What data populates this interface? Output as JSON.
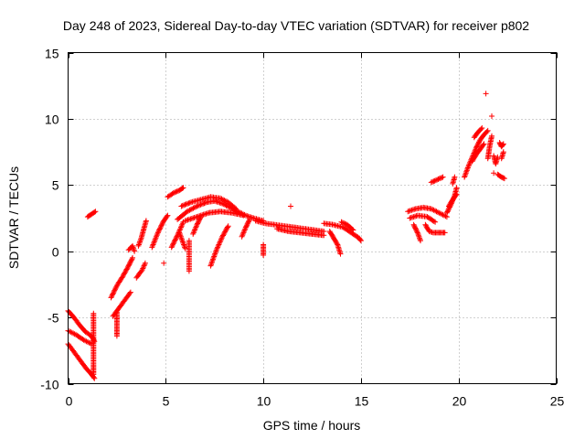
{
  "chart_data": {
    "type": "scatter",
    "title": "Day 248 of 2023, Sidereal Day-to-day VTEC variation (SDTVAR) for receiver p802",
    "xlabel": "GPS time / hours",
    "ylabel": "SDTVAR / TECUs",
    "xlim": [
      0,
      25
    ],
    "ylim": [
      -10,
      15
    ],
    "xticks": [
      0,
      5,
      10,
      15,
      20,
      25
    ],
    "yticks": [
      -10,
      -5,
      0,
      5,
      10,
      15
    ],
    "xtick_labels": [
      "0",
      "5",
      "10",
      "15",
      "20",
      "25"
    ],
    "ytick_labels": [
      "-10",
      "-5",
      "0",
      "5",
      "10",
      "15"
    ],
    "grid": true,
    "marker": "+",
    "series": [
      {
        "name": "SDTVAR",
        "color": "#ff0000",
        "segments": [
          [
            [
              0.0,
              -4.5
            ],
            [
              0.3,
              -5.0
            ],
            [
              0.6,
              -5.6
            ],
            [
              0.9,
              -6.1
            ],
            [
              1.2,
              -6.4
            ],
            [
              1.35,
              -6.8
            ]
          ],
          [
            [
              0.0,
              -6.0
            ],
            [
              0.4,
              -6.3
            ],
            [
              0.8,
              -6.7
            ],
            [
              1.2,
              -7.0
            ]
          ],
          [
            [
              0.0,
              -7.0
            ],
            [
              0.3,
              -7.6
            ],
            [
              0.6,
              -8.2
            ],
            [
              0.9,
              -8.8
            ],
            [
              1.2,
              -9.3
            ],
            [
              1.35,
              -9.6
            ]
          ],
          [
            [
              1.3,
              -4.7
            ],
            [
              1.3,
              -6.0
            ],
            [
              1.3,
              -7.2
            ],
            [
              1.3,
              -8.6
            ],
            [
              1.3,
              -9.3
            ]
          ],
          [
            [
              1.0,
              2.6
            ],
            [
              1.2,
              2.8
            ],
            [
              1.4,
              3.0
            ]
          ],
          [
            [
              2.2,
              -3.5
            ],
            [
              2.5,
              -2.6
            ],
            [
              2.8,
              -1.9
            ],
            [
              3.1,
              -1.1
            ],
            [
              3.3,
              -0.5
            ]
          ],
          [
            [
              2.3,
              -4.9
            ],
            [
              2.6,
              -4.3
            ],
            [
              2.9,
              -3.7
            ],
            [
              3.2,
              -3.1
            ]
          ],
          [
            [
              2.5,
              -4.6
            ],
            [
              2.5,
              -5.4
            ],
            [
              2.5,
              -6.4
            ]
          ],
          [
            [
              3.1,
              0.1
            ],
            [
              3.3,
              0.4
            ],
            [
              3.4,
              0.0
            ]
          ],
          [
            [
              3.5,
              -2.0
            ],
            [
              3.8,
              -1.4
            ],
            [
              3.95,
              -0.9
            ]
          ],
          [
            [
              3.6,
              0.4
            ],
            [
              3.75,
              1.0
            ],
            [
              3.9,
              1.8
            ],
            [
              4.0,
              2.3
            ]
          ],
          [
            [
              4.3,
              0.3
            ],
            [
              4.6,
              1.4
            ],
            [
              4.9,
              2.3
            ],
            [
              5.1,
              2.7
            ]
          ],
          [
            [
              4.9,
              -0.9
            ]
          ],
          [
            [
              5.1,
              4.1
            ],
            [
              5.4,
              4.4
            ],
            [
              5.7,
              4.6
            ],
            [
              5.9,
              4.8
            ]
          ],
          [
            [
              5.3,
              0.3
            ],
            [
              5.6,
              1.2
            ],
            [
              5.9,
              2.2
            ]
          ],
          [
            [
              5.6,
              2.4
            ],
            [
              6.1,
              3.0
            ],
            [
              6.6,
              3.4
            ],
            [
              7.1,
              3.7
            ],
            [
              7.5,
              3.8
            ],
            [
              7.9,
              3.6
            ],
            [
              8.3,
              3.3
            ],
            [
              8.7,
              3.0
            ],
            [
              9.1,
              2.7
            ],
            [
              9.5,
              2.5
            ],
            [
              10.0,
              2.3
            ]
          ],
          [
            [
              5.8,
              3.4
            ],
            [
              6.3,
              3.7
            ],
            [
              6.8,
              3.9
            ],
            [
              7.3,
              4.1
            ],
            [
              7.8,
              4.0
            ],
            [
              8.2,
              3.7
            ],
            [
              8.6,
              3.2
            ]
          ],
          [
            [
              6.0,
              2.3
            ],
            [
              6.6,
              2.6
            ],
            [
              7.2,
              2.9
            ],
            [
              7.8,
              3.0
            ],
            [
              8.4,
              2.9
            ],
            [
              9.0,
              2.7
            ]
          ],
          [
            [
              6.2,
              0.8
            ],
            [
              6.2,
              -0.4
            ],
            [
              6.2,
              -1.5
            ]
          ],
          [
            [
              6.4,
              1.3
            ],
            [
              6.6,
              2.0
            ],
            [
              6.8,
              2.6
            ]
          ],
          [
            [
              6.0,
              0.2
            ],
            [
              5.7,
              1.4
            ]
          ],
          [
            [
              7.3,
              -1.1
            ],
            [
              7.6,
              0.1
            ],
            [
              7.9,
              1.1
            ],
            [
              8.2,
              1.9
            ]
          ],
          [
            [
              8.9,
              1.1
            ],
            [
              9.1,
              1.8
            ],
            [
              9.3,
              2.4
            ]
          ],
          [
            [
              9.6,
              2.3
            ],
            [
              10.1,
              2.1
            ],
            [
              10.6,
              2.0
            ],
            [
              11.1,
              1.9
            ],
            [
              11.6,
              1.8
            ],
            [
              12.1,
              1.7
            ],
            [
              12.6,
              1.6
            ],
            [
              13.1,
              1.5
            ]
          ],
          [
            [
              10.0,
              0.5
            ],
            [
              10.0,
              -0.3
            ]
          ],
          [
            [
              10.7,
              1.7
            ],
            [
              11.3,
              1.5
            ],
            [
              11.9,
              1.4
            ],
            [
              12.5,
              1.3
            ],
            [
              13.1,
              1.2
            ]
          ],
          [
            [
              11.4,
              3.4
            ]
          ],
          [
            [
              13.1,
              2.1
            ],
            [
              13.6,
              2.0
            ],
            [
              14.1,
              1.8
            ],
            [
              14.5,
              1.4
            ],
            [
              14.9,
              1.0
            ],
            [
              15.0,
              0.8
            ]
          ],
          [
            [
              13.4,
              1.5
            ],
            [
              13.6,
              1.0
            ],
            [
              13.8,
              0.5
            ],
            [
              13.95,
              -0.2
            ]
          ],
          [
            [
              14.0,
              2.2
            ],
            [
              14.3,
              2.0
            ],
            [
              14.6,
              1.6
            ]
          ],
          [
            [
              17.4,
              3.0
            ],
            [
              17.8,
              3.2
            ],
            [
              18.2,
              3.3
            ],
            [
              18.6,
              3.2
            ],
            [
              19.0,
              2.9
            ],
            [
              19.4,
              2.6
            ]
          ],
          [
            [
              17.5,
              2.5
            ],
            [
              17.9,
              2.7
            ],
            [
              18.4,
              2.6
            ],
            [
              18.8,
              2.2
            ]
          ],
          [
            [
              17.7,
              2.0
            ],
            [
              17.9,
              1.4
            ],
            [
              18.05,
              0.8
            ]
          ],
          [
            [
              18.3,
              2.0
            ],
            [
              18.5,
              1.5
            ],
            [
              18.7,
              1.4
            ],
            [
              19.0,
              1.4
            ],
            [
              19.3,
              1.4
            ]
          ],
          [
            [
              18.6,
              5.2
            ],
            [
              18.9,
              5.4
            ],
            [
              19.2,
              5.6
            ]
          ],
          [
            [
              19.4,
              2.9
            ],
            [
              19.6,
              3.5
            ],
            [
              19.8,
              4.2
            ],
            [
              19.9,
              4.8
            ]
          ],
          [
            [
              19.5,
              3.4
            ],
            [
              19.7,
              3.9
            ],
            [
              19.9,
              4.3
            ]
          ],
          [
            [
              19.7,
              5.1
            ],
            [
              19.8,
              5.6
            ]
          ],
          [
            [
              20.3,
              5.6
            ],
            [
              20.5,
              6.4
            ],
            [
              20.7,
              7.1
            ],
            [
              20.9,
              7.8
            ],
            [
              21.1,
              8.4
            ],
            [
              21.3,
              8.8
            ],
            [
              21.5,
              9.1
            ]
          ],
          [
            [
              20.7,
              6.8
            ],
            [
              20.9,
              7.3
            ],
            [
              21.1,
              7.7
            ],
            [
              21.3,
              8.1
            ]
          ],
          [
            [
              20.8,
              8.6
            ],
            [
              21.0,
              9.0
            ],
            [
              21.2,
              9.3
            ]
          ],
          [
            [
              21.4,
              11.9
            ]
          ],
          [
            [
              21.7,
              10.2
            ]
          ],
          [
            [
              21.5,
              7.0
            ],
            [
              21.6,
              8.0
            ],
            [
              21.7,
              8.7
            ]
          ],
          [
            [
              21.8,
              7.2
            ],
            [
              21.9,
              6.6
            ],
            [
              22.0,
              7.1
            ]
          ],
          [
            [
              21.8,
              5.9
            ]
          ],
          [
            [
              22.1,
              8.2
            ],
            [
              22.2,
              7.9
            ],
            [
              22.3,
              8.1
            ]
          ],
          [
            [
              22.0,
              5.8
            ],
            [
              22.2,
              5.6
            ],
            [
              22.35,
              5.5
            ]
          ],
          [
            [
              22.3,
              7.5
            ],
            [
              22.2,
              7.0
            ]
          ]
        ]
      }
    ]
  }
}
